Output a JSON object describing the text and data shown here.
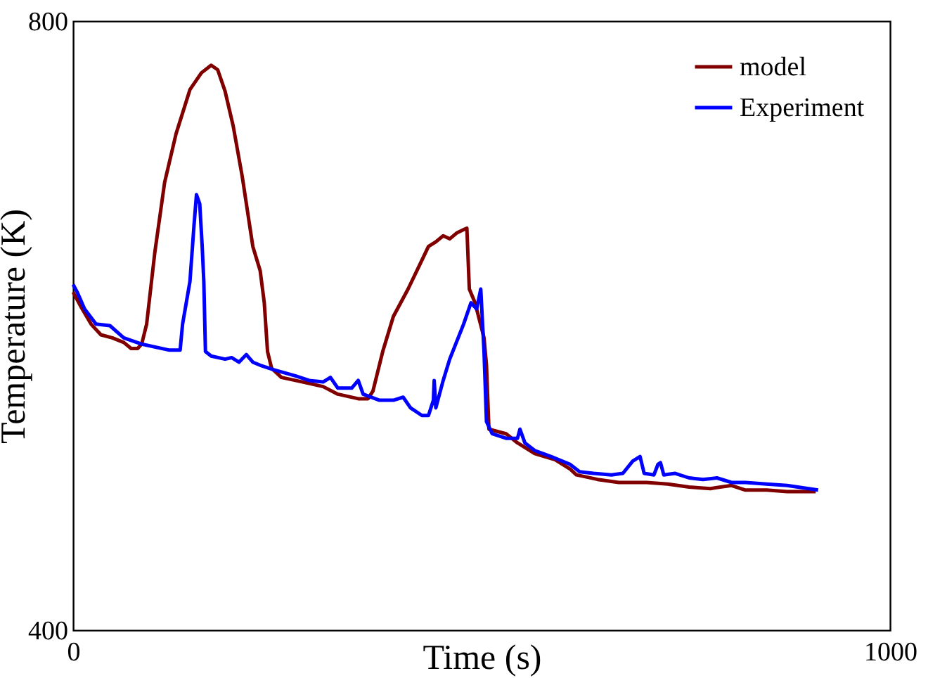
{
  "chart_data": {
    "type": "line",
    "xlabel": "Time (s)",
    "ylabel": "Temperature (K)",
    "xlim": [
      0,
      1000
    ],
    "ylim": [
      400,
      800
    ],
    "xticks": [
      0,
      1000
    ],
    "yticks": [
      400,
      800
    ],
    "grid": false,
    "legend": "top right",
    "marker": "none",
    "line_style": "solid",
    "series": [
      {
        "name": "model",
        "color": "#800000",
        "x": [
          0,
          10,
          22,
          34,
          48,
          62,
          71,
          79,
          84,
          90,
          100,
          112,
          126,
          143,
          157,
          169,
          177,
          186,
          196,
          207,
          220,
          229,
          234,
          238,
          243,
          255,
          281,
          306,
          324,
          349,
          361,
          367,
          379,
          392,
          410,
          427,
          435,
          444,
          453,
          461,
          470,
          478,
          482,
          485,
          492,
          503,
          506,
          509,
          530,
          544,
          565,
          590,
          608,
          616,
          642,
          668,
          702,
          728,
          754,
          780,
          806,
          823,
          849,
          874,
          909
        ],
        "values": [
          622,
          612,
          601,
          594,
          592,
          589,
          585,
          585,
          588,
          601,
          648,
          694,
          726,
          755,
          766,
          771,
          768,
          754,
          731,
          698,
          652,
          636,
          615,
          583,
          572,
          566,
          563,
          560,
          555,
          552,
          552,
          557,
          583,
          606,
          624,
          643,
          652,
          655,
          659,
          657,
          661,
          663,
          664,
          624,
          615,
          592,
          574,
          532,
          529,
          523,
          516,
          512,
          506,
          502,
          499,
          497,
          497,
          496,
          494,
          493,
          495,
          492,
          492,
          491,
          491
        ]
      },
      {
        "name": "Experiment",
        "color": "#0000ff",
        "x": [
          0,
          5,
          14,
          28,
          45,
          62,
          83,
          117,
          131,
          134,
          143,
          148,
          151,
          155,
          158,
          160,
          162,
          169,
          186,
          194,
          203,
          212,
          220,
          229,
          246,
          272,
          289,
          306,
          315,
          324,
          341,
          349,
          355,
          375,
          392,
          404,
          413,
          427,
          435,
          441,
          442,
          444,
          453,
          461,
          478,
          487,
          494,
          499,
          503,
          506,
          513,
          530,
          544,
          547,
          553,
          565,
          585,
          608,
          620,
          637,
          659,
          673,
          685,
          694,
          699,
          711,
          716,
          719,
          723,
          737,
          754,
          771,
          788,
          806,
          823,
          849,
          874,
          912
        ],
        "values": [
          627,
          622,
          611,
          601,
          600,
          592,
          588,
          584,
          584,
          601,
          629,
          666,
          686,
          680,
          652,
          629,
          583,
          580,
          578,
          579,
          576,
          581,
          576,
          574,
          571,
          567,
          564,
          563,
          566,
          559,
          559,
          564,
          555,
          551,
          551,
          553,
          546,
          541,
          541,
          551,
          564,
          546,
          564,
          578,
          601,
          615,
          611,
          624,
          583,
          537,
          529,
          526,
          526,
          532,
          523,
          518,
          514,
          509,
          504,
          503,
          502,
          503,
          511,
          514,
          503,
          502,
          509,
          510,
          502,
          503,
          500,
          499,
          500,
          497,
          497,
          496,
          495,
          492
        ]
      }
    ]
  }
}
